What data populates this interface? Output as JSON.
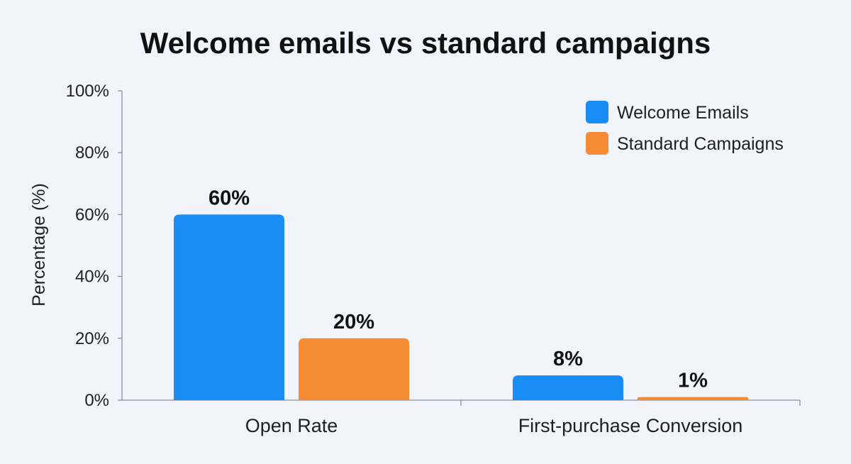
{
  "chart_data": {
    "type": "bar",
    "title": "Welcome emails vs standard campaigns",
    "xlabel": "",
    "ylabel": "Percentage (%)",
    "ylim": [
      0,
      100
    ],
    "yticks": [
      0,
      20,
      40,
      60,
      80,
      100
    ],
    "ytick_labels": [
      "0%",
      "20%",
      "40%",
      "60%",
      "80%",
      "100%"
    ],
    "categories": [
      "Open Rate",
      "First-purchase Conversion"
    ],
    "series": [
      {
        "name": "Welcome Emails",
        "values": [
          60,
          8
        ],
        "labels": [
          "60%",
          "8%"
        ],
        "color": "#1a8cf5"
      },
      {
        "name": "Standard Campaigns",
        "values": [
          20,
          1
        ],
        "labels": [
          "20%",
          "1%"
        ],
        "color": "#f58c35"
      }
    ],
    "grid": false,
    "legend_position": "top-right"
  }
}
